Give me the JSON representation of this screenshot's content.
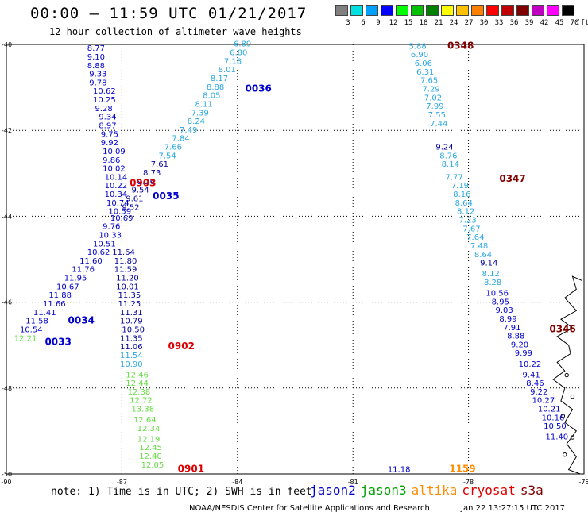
{
  "header": {
    "title": "00:00 – 11:59 UTC 01/21/2017",
    "subtitle": "12 hour collection of altimeter wave heights"
  },
  "legend": {
    "unit": "(ft)",
    "bins": [
      {
        "label": "3",
        "color": "#808080"
      },
      {
        "label": "6",
        "color": "#00e0e0"
      },
      {
        "label": "9",
        "color": "#00a0ff"
      },
      {
        "label": "12",
        "color": "#0000ff"
      },
      {
        "label": "15",
        "color": "#00ff00"
      },
      {
        "label": "18",
        "color": "#00c000"
      },
      {
        "label": "21",
        "color": "#008000"
      },
      {
        "label": "24",
        "color": "#ffff00"
      },
      {
        "label": "27",
        "color": "#ffc000"
      },
      {
        "label": "30",
        "color": "#ff8000"
      },
      {
        "label": "33",
        "color": "#ff0000"
      },
      {
        "label": "36",
        "color": "#c00000"
      },
      {
        "label": "39",
        "color": "#800000"
      },
      {
        "label": "42",
        "color": "#c000c0"
      },
      {
        "label": "45",
        "color": "#ff00ff"
      },
      {
        "label": "70",
        "color": "#000000"
      }
    ]
  },
  "axes": {
    "x_ticks": [
      "-90",
      "-87",
      "-84",
      "-81",
      "-78",
      "-75"
    ],
    "y_ticks": [
      "-40",
      "-42",
      "-44",
      "-46",
      "-48",
      "-50"
    ],
    "xlim": [
      -90,
      -75
    ],
    "ylim": [
      -50,
      -40
    ]
  },
  "colors": {
    "jason2": "#0000cc",
    "jason3": "#00a000",
    "altika": "#ff8c00",
    "cryosat": "#dd0000",
    "s3a": "#800000",
    "blue": "#0000cc",
    "navy": "#000099",
    "cyan": "#2aa8e0",
    "green": "#66dd44"
  },
  "chart_data": {
    "type": "scatter",
    "passes": [
      {
        "label": "0348",
        "sat": "s3a",
        "lon": -78.55,
        "lat": -40.1
      },
      {
        "label": "0036",
        "sat": "jason2",
        "lon": -83.8,
        "lat": -41.1
      },
      {
        "label": "0903",
        "sat": "cryosat",
        "lon": -86.8,
        "lat": -43.3
      },
      {
        "label": "0035",
        "sat": "jason2",
        "lon": -86.2,
        "lat": -43.6
      },
      {
        "label": "0347",
        "sat": "s3a",
        "lon": -77.2,
        "lat": -43.2
      },
      {
        "label": "0034",
        "sat": "jason2",
        "lon": -88.4,
        "lat": -46.5
      },
      {
        "label": "0033",
        "sat": "jason2",
        "lon": -89.0,
        "lat": -47.0
      },
      {
        "label": "0902",
        "sat": "cryosat",
        "lon": -85.8,
        "lat": -47.1
      },
      {
        "label": "0346",
        "sat": "s3a",
        "lon": -75.9,
        "lat": -46.7
      },
      {
        "label": "0901",
        "sat": "cryosat",
        "lon": -85.55,
        "lat": -49.95
      },
      {
        "label": "1159",
        "sat": "altika",
        "lon": -78.5,
        "lat": -49.95
      }
    ],
    "tracks": [
      {
        "name": "t1",
        "color": "blue",
        "lon": [
          -87.9,
          -87.9,
          -87.9,
          -87.85,
          -87.85,
          -87.75,
          -87.75,
          -87.7,
          -87.6,
          -87.6,
          -87.55,
          -87.55,
          -87.5,
          -87.5,
          -87.5,
          -87.45,
          -87.45,
          -87.45,
          -87.4,
          -87.35,
          -87.3,
          -87.5,
          -87.6,
          -87.75,
          -87.9,
          -88.1,
          -88.3,
          -88.5,
          -88.7,
          -88.9,
          -89.05,
          -89.3,
          -89.5,
          -89.65
        ],
        "lat": [
          -40.15,
          -40.35,
          -40.55,
          -40.75,
          -40.95,
          -41.15,
          -41.35,
          -41.55,
          -41.75,
          -41.95,
          -42.15,
          -42.35,
          -42.55,
          -42.75,
          -42.95,
          -43.15,
          -43.35,
          -43.55,
          -43.75,
          -43.95,
          -44.1,
          -44.3,
          -44.5,
          -44.7,
          -44.9,
          -45.1,
          -45.3,
          -45.5,
          -45.7,
          -45.9,
          -46.1,
          -46.3,
          -46.5,
          -46.7
        ],
        "values": [
          "8.77",
          "9.10",
          "8.88",
          "9.33",
          "9.78",
          "10.62",
          "10.25",
          "9.28",
          "9.34",
          "8.97",
          "9.75",
          "9.92",
          "10.09",
          "9.86",
          "10.02",
          "10.14",
          "10.22",
          "10.34",
          "10.74",
          "10.59",
          "10.69",
          "9.76",
          "10.33",
          "10.51",
          "10.62",
          "11.60",
          "11.76",
          "11.95",
          "10.67",
          "11.88",
          "11.66",
          "11.41",
          "11.58",
          "10.54"
        ]
      },
      {
        "name": "t1s",
        "color": "green",
        "lon": [
          -89.8
        ],
        "lat": [
          -46.9
        ],
        "values": [
          "12.21"
        ]
      },
      {
        "name": "t2",
        "color": "cyan",
        "lon": [
          -84.1,
          -84.2,
          -84.35,
          -84.5,
          -84.7,
          -84.8,
          -84.9,
          -85.1,
          -85.2,
          -85.3,
          -85.5,
          -85.7,
          -85.9,
          -86.05
        ],
        "lat": [
          -40.05,
          -40.25,
          -40.45,
          -40.65,
          -40.85,
          -41.05,
          -41.25,
          -41.45,
          -41.65,
          -41.85,
          -42.05,
          -42.25,
          -42.45,
          -42.65
        ],
        "values": [
          "6.89",
          "6.80",
          "7.18",
          "8.01",
          "8.17",
          "8.88",
          "8.05",
          "8.11",
          "7.39",
          "8.24",
          "7.49",
          "7.84",
          "7.66",
          "7.54"
        ]
      },
      {
        "name": "t2b",
        "color": "navy",
        "lon": [
          -86.25,
          -86.45,
          -86.6,
          -86.75,
          -86.9,
          -87.0
        ],
        "lat": [
          -42.85,
          -43.05,
          -43.25,
          -43.45,
          -43.65,
          -43.85
        ],
        "values": [
          "7.61",
          "8.73",
          "9.26",
          "9.54",
          "9.61",
          "9.52"
        ]
      },
      {
        "name": "t3",
        "color": "navy",
        "lon": [
          -87.25,
          -87.2,
          -87.2,
          -87.15,
          -87.15,
          -87.1,
          -87.1,
          -87.05,
          -87.05,
          -87.0,
          -87.05,
          -87.05
        ],
        "lat": [
          -44.9,
          -45.1,
          -45.3,
          -45.5,
          -45.7,
          -45.9,
          -46.1,
          -46.3,
          -46.5,
          -46.7,
          -46.9,
          -47.1
        ],
        "values": [
          "11.64",
          "11.80",
          "11.59",
          "11.20",
          "10.01",
          "11.35",
          "11.25",
          "11.31",
          "10.79",
          "10.50",
          "11.35",
          "11.06"
        ]
      },
      {
        "name": "t3b",
        "color": "cyan",
        "lon": [
          -87.05,
          -87.05
        ],
        "lat": [
          -47.3,
          -47.5
        ],
        "values": [
          "11.54",
          "10.90"
        ]
      },
      {
        "name": "t3c",
        "color": "green",
        "lon": [
          -86.9,
          -86.9,
          -86.85,
          -86.8,
          -86.75,
          -86.7,
          -86.6,
          -86.6,
          -86.55,
          -86.55,
          -86.5,
          -86.5
        ],
        "lat": [
          -47.75,
          -47.95,
          -48.15,
          -48.35,
          -48.55,
          -48.8,
          -49.0,
          -49.25,
          -49.45,
          -49.65,
          -49.85,
          -49.95
        ],
        "values": [
          "12.46",
          "12.44",
          "12.38",
          "12.72",
          "13.38",
          "12.64",
          "12.34",
          "12.19",
          "12.45",
          "12.40",
          "12.05",
          ""
        ]
      },
      {
        "name": "t4",
        "color": "cyan",
        "lon": [
          -79.55,
          -79.5,
          -79.4,
          -79.35,
          -79.25,
          -79.2,
          -79.15,
          -79.1,
          -79.05,
          -79.0,
          -78.95
        ],
        "lat": [
          -40.1,
          -40.3,
          -40.5,
          -40.7,
          -40.9,
          -41.1,
          -41.3,
          -41.5,
          -41.7,
          -41.9,
          -42.1
        ],
        "values": [
          "5.88",
          "6.90",
          "6.06",
          "6.31",
          "7.65",
          "7.29",
          "7.02",
          "7.99",
          "7.55",
          "7.44",
          ""
        ]
      },
      {
        "name": "t4b",
        "color": "navy",
        "lon": [
          -78.85
        ],
        "lat": [
          -42.45
        ],
        "values": [
          "9.24"
        ]
      },
      {
        "name": "t4c",
        "color": "cyan",
        "lon": [
          -78.75,
          -78.7,
          -78.6,
          -78.45,
          -78.4,
          -78.35,
          -78.3,
          -78.25,
          -78.15,
          -78.05,
          -77.95,
          -77.85
        ],
        "lat": [
          -42.65,
          -42.85,
          -43.15,
          -43.35,
          -43.55,
          -43.75,
          -43.95,
          -44.15,
          -44.35,
          -44.55,
          -44.75,
          -44.95
        ],
        "values": [
          "8.76",
          "8.14",
          "7.77",
          "7.19",
          "8.16",
          "8.64",
          "8.12",
          "7.23",
          "7.67",
          "7.64",
          "7.48",
          "8.64"
        ]
      },
      {
        "name": "t4d",
        "color": "navy",
        "lon": [
          -77.7
        ],
        "lat": [
          -45.15
        ],
        "values": [
          "9.14"
        ]
      },
      {
        "name": "t4e",
        "color": "cyan",
        "lon": [
          -77.65,
          -77.6
        ],
        "lat": [
          -45.4,
          -45.6
        ],
        "values": [
          "8.12",
          "8.28"
        ]
      },
      {
        "name": "t4f",
        "color": "blue",
        "lon": [
          -77.55,
          -77.4,
          -77.3,
          -77.2,
          -77.1,
          -77.0,
          -76.9,
          -76.8,
          -76.7,
          -76.6,
          -76.5,
          -76.4,
          -76.35,
          -76.2,
          -76.1,
          -76.05
        ],
        "lat": [
          -45.85,
          -46.05,
          -46.25,
          -46.45,
          -46.65,
          -46.85,
          -47.05,
          -47.25,
          -47.5,
          -47.75,
          -47.95,
          -48.15,
          -48.35,
          -48.55,
          -48.75,
          -48.95
        ],
        "values": [
          "10.56",
          "8.95",
          "9.03",
          "8.99",
          "7.91",
          "8.88",
          "9.20",
          "9.99",
          "10.22",
          "9.41",
          "8.46",
          "9.22",
          "10.27",
          "10.21",
          "10.16",
          "10.50"
        ]
      },
      {
        "name": "t4g",
        "color": "blue",
        "lon": [
          -76.0
        ],
        "lat": [
          -49.2
        ],
        "values": [
          "11.40"
        ]
      },
      {
        "name": "t5",
        "color": "blue",
        "lon": [
          -80.1
        ],
        "lat": [
          -49.95
        ],
        "values": [
          "11.18"
        ]
      }
    ]
  },
  "footer": {
    "note": "note: 1) Time is in UTC; 2) SWH is in feet",
    "satellites": [
      {
        "name": "jason2",
        "color": "#0000cc"
      },
      {
        "name": "jason3",
        "color": "#00a000"
      },
      {
        "name": "altika",
        "color": "#ff8c00"
      },
      {
        "name": "cryosat",
        "color": "#dd0000"
      },
      {
        "name": "s3a",
        "color": "#800000"
      }
    ],
    "credit": "NOAA/NESDIS Center for Satellite Applications and Research",
    "timestamp": "Jan 22 13:27:15 UTC 2017"
  }
}
